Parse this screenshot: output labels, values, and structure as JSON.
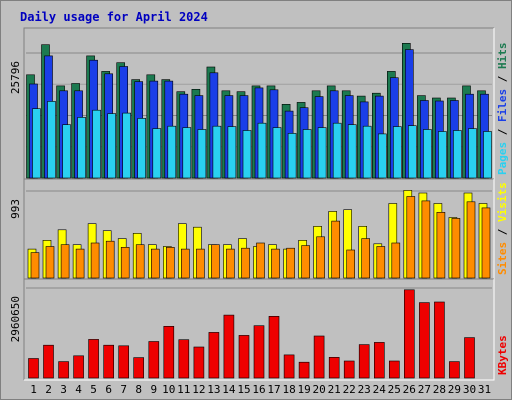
{
  "chart_data": {
    "type": "bar",
    "title": "Daily usage for April 2024",
    "x": [
      "1",
      "2",
      "3",
      "4",
      "5",
      "6",
      "7",
      "8",
      "9",
      "10",
      "11",
      "12",
      "13",
      "14",
      "15",
      "16",
      "17",
      "18",
      "19",
      "20",
      "21",
      "22",
      "23",
      "24",
      "25",
      "26",
      "27",
      "28",
      "29",
      "30",
      "31"
    ],
    "weekend_days": [
      "6",
      "7",
      "13",
      "14",
      "20",
      "21",
      "27",
      "28"
    ],
    "colors": {
      "background": "#c0c0c0",
      "title": "#0000c0",
      "weekday_label": "#000000",
      "weekend_label": "#1a7a4a",
      "hits": "#1c7a50",
      "files": "#1a3ee8",
      "pages": "#2ad0f0",
      "visits": "#ffff00",
      "sites": "#ff8c00",
      "kbytes": "#ee0000"
    },
    "panels": [
      {
        "id": "hits-files-pages",
        "ytick": "25796",
        "ymax": 25796,
        "label_parts": [
          {
            "text": "Pages",
            "color": "#2ad0f0"
          },
          {
            "text": " / ",
            "color": "#000000"
          },
          {
            "text": "Files",
            "color": "#1a3ee8"
          },
          {
            "text": " / ",
            "color": "#000000"
          },
          {
            "text": "Hits",
            "color": "#1c7a50"
          }
        ],
        "series": [
          {
            "name": "Hits",
            "color": "#1c7a50",
            "values": [
              21300,
              27500,
              19000,
              19500,
              25200,
              22000,
              23800,
              20300,
              21300,
              20300,
              17800,
              18300,
              22900,
              18000,
              17800,
              19000,
              19000,
              15200,
              15600,
              18000,
              19000,
              18000,
              16900,
              17500,
              22000,
              27800,
              17000,
              16500,
              16500,
              19000,
              18000
            ]
          },
          {
            "name": "Files",
            "color": "#1a3ee8",
            "values": [
              19400,
              25200,
              18000,
              18000,
              24300,
              21500,
              23000,
              19900,
              20000,
              20000,
              17300,
              17000,
              21700,
              17000,
              17000,
              18600,
              18200,
              13800,
              14500,
              16800,
              18000,
              17000,
              15700,
              16900,
              20700,
              26500,
              16000,
              15900,
              16000,
              17300,
              17300
            ]
          },
          {
            "name": "Pages",
            "color": "#2ad0f0",
            "values": [
              14300,
              15800,
              11000,
              12500,
              14000,
              13300,
              13400,
              12300,
              10200,
              10700,
              10400,
              10000,
              10700,
              10600,
              9800,
              11300,
              10400,
              9200,
              10000,
              10400,
              11300,
              11000,
              10700,
              9100,
              10600,
              10800,
              10000,
              9600,
              9800,
              10200,
              9600
            ]
          }
        ]
      },
      {
        "id": "visits-sites",
        "ytick": "993",
        "ymax": 993,
        "label_parts": [
          {
            "text": "Sites",
            "color": "#ff8c00"
          },
          {
            "text": " / ",
            "color": "#000000"
          },
          {
            "text": "Visits",
            "color": "#ffff00"
          }
        ],
        "series": [
          {
            "name": "Visits",
            "color": "#ffff00",
            "values": [
              330,
              430,
              550,
              380,
              620,
              540,
              450,
              510,
              380,
              360,
              620,
              580,
              380,
              380,
              450,
              360,
              380,
              330,
              430,
              590,
              760,
              780,
              590,
              390,
              850,
              1000,
              970,
              850,
              690,
              970,
              850
            ]
          },
          {
            "name": "Sites",
            "color": "#ff8c00",
            "values": [
              290,
              360,
              380,
              330,
              400,
              420,
              350,
              380,
              330,
              350,
              330,
              330,
              380,
              330,
              340,
              400,
              330,
              340,
              370,
              470,
              650,
              320,
              450,
              360,
              400,
              930,
              880,
              750,
              680,
              870,
              800
            ]
          }
        ]
      },
      {
        "id": "kbytes",
        "ytick": "2960650",
        "ymax": 2960650,
        "label_parts": [
          {
            "text": "KBytes",
            "color": "#ee0000"
          }
        ],
        "series": [
          {
            "name": "KBytes",
            "color": "#ee0000",
            "values": [
              640000,
              1080000,
              540000,
              730000,
              1270000,
              1080000,
              1060000,
              670000,
              1200000,
              1700000,
              1260000,
              1020000,
              1500000,
              2070000,
              1400000,
              1720000,
              2030000,
              760000,
              520000,
              1380000,
              680000,
              560000,
              1100000,
              1170000,
              560000,
              2900000,
              2480000,
              2500000,
              540000,
              1330000,
              0
            ]
          }
        ]
      }
    ]
  }
}
